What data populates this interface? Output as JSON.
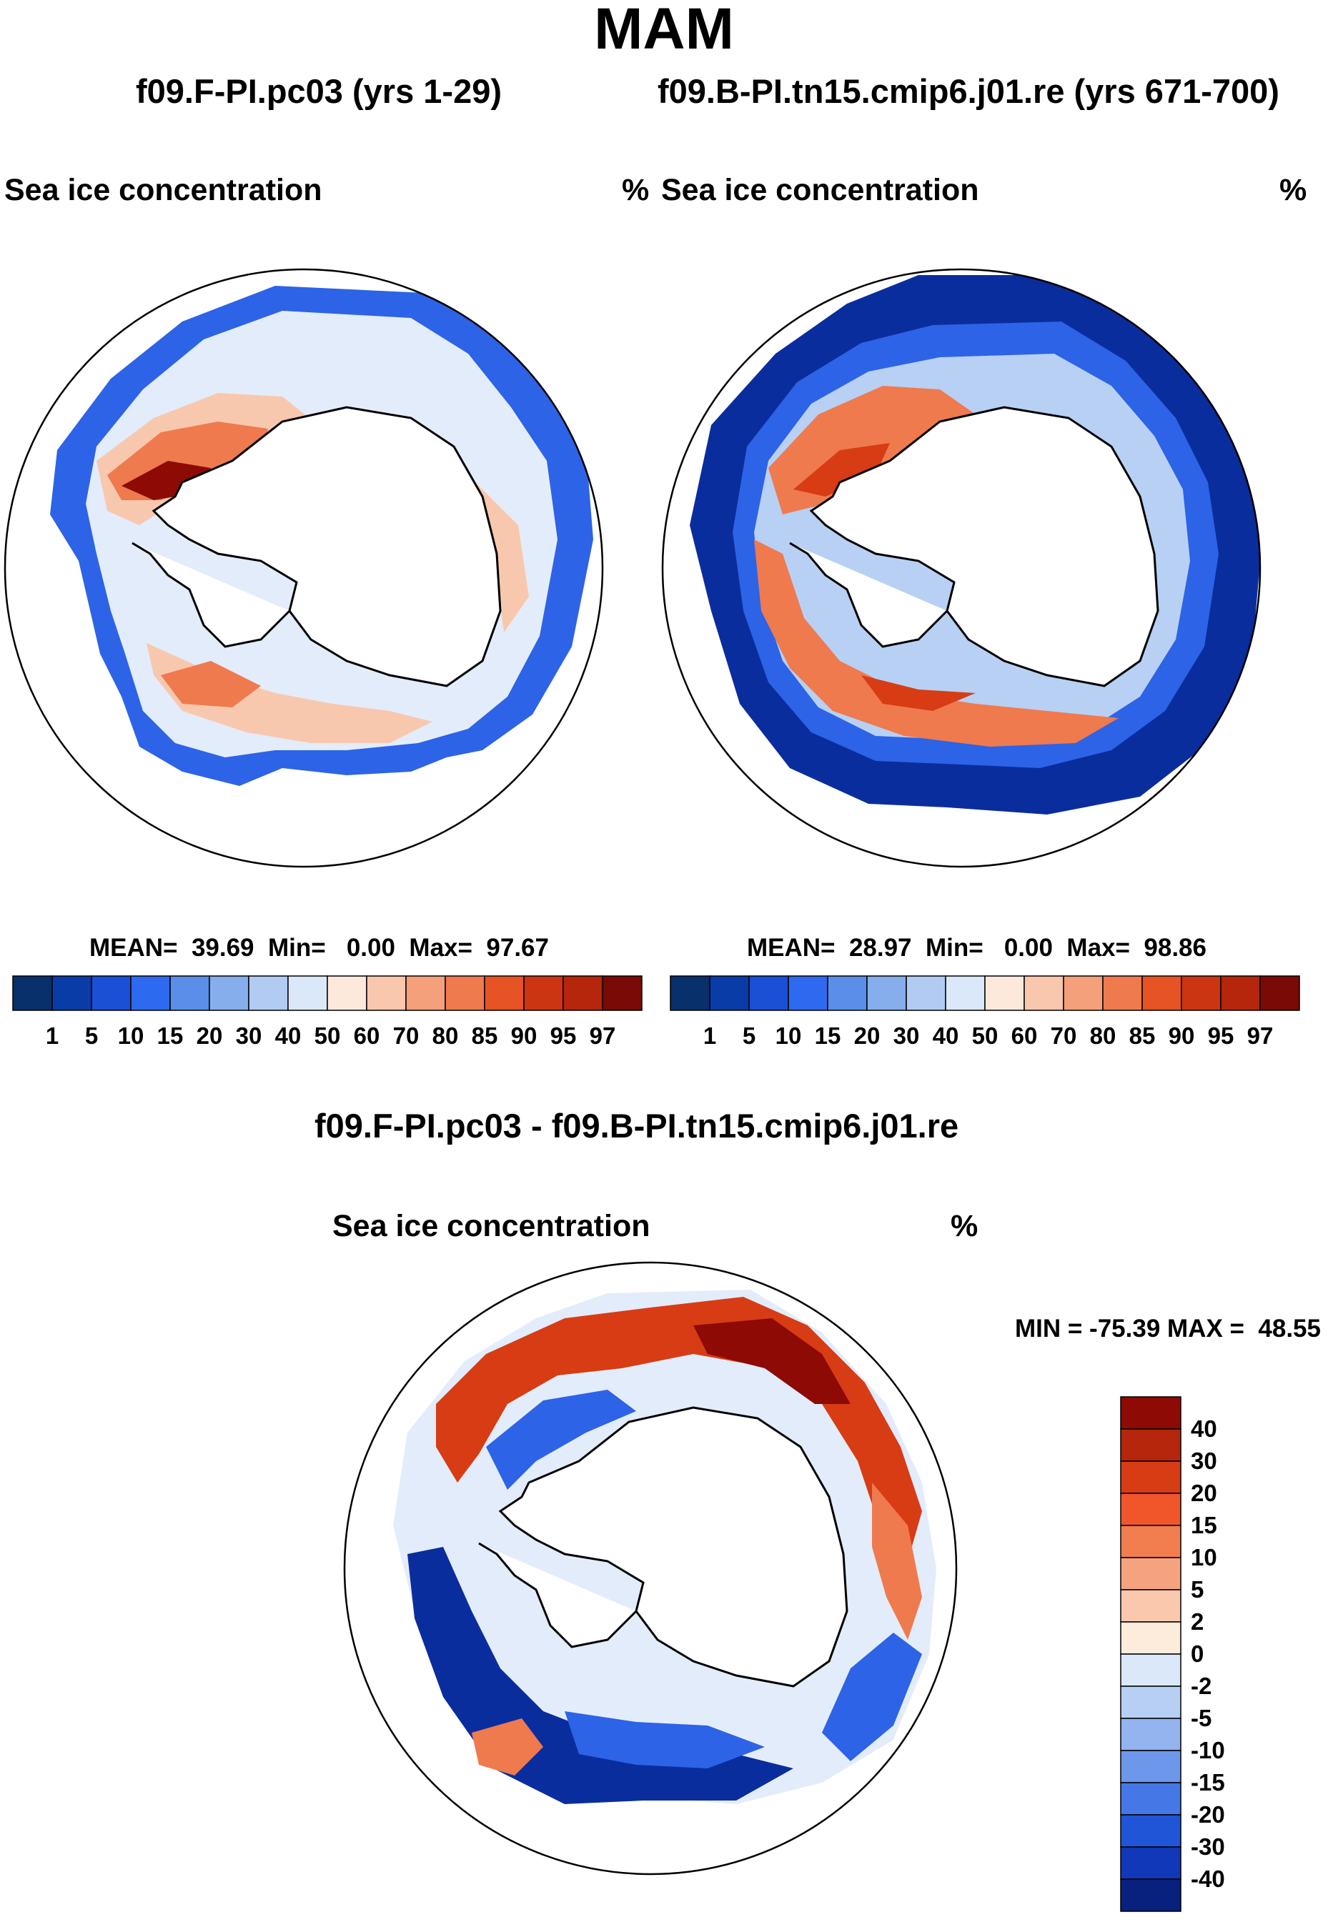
{
  "figure": {
    "season": "MAM",
    "left_panel": {
      "title": "f09.F-PI.pc03 (yrs 1-29)",
      "variable": "Sea ice concentration",
      "units": "%",
      "stats": "MEAN=  39.69  Min=   0.00  Max=  97.67"
    },
    "right_panel": {
      "title": "f09.B-PI.tn15.cmip6.j01.re (yrs 671-700)",
      "variable": "Sea ice concentration",
      "units": "%",
      "stats": "MEAN=  28.97  Min=   0.00  Max=  98.86"
    },
    "diff_panel": {
      "title": "f09.F-PI.pc03 - f09.B-PI.tn15.cmip6.j01.re",
      "variable": "Sea ice concentration",
      "units": "%",
      "stats": "MIN = -75.39 MAX =  48.55"
    },
    "abs_colorbar": {
      "ticks": [
        "1",
        "5",
        "10",
        "15",
        "20",
        "30",
        "40",
        "50",
        "60",
        "70",
        "80",
        "85",
        "90",
        "95",
        "97"
      ],
      "colors": [
        "#08306b",
        "#0a3ca8",
        "#1a4fd6",
        "#2e6af0",
        "#5a8ee8",
        "#86aeec",
        "#b2cbf2",
        "#dbe8fa",
        "#fde9dc",
        "#f8c7ad",
        "#f3a07b",
        "#ef7a4e",
        "#e65325",
        "#cc3512",
        "#b5260c",
        "#7a0a05"
      ]
    },
    "diff_colorbar": {
      "ticks": [
        "40",
        "30",
        "20",
        "15",
        "10",
        "5",
        "2",
        "0",
        "-2",
        "-5",
        "-10",
        "-15",
        "-20",
        "-30",
        "-40"
      ],
      "colors": [
        "#8e0a05",
        "#b5260c",
        "#d73c15",
        "#f0562a",
        "#f27d4f",
        "#f5a37e",
        "#f9c8ad",
        "#fdebdc",
        "#dbe8fa",
        "#b8cff4",
        "#93b4ee",
        "#6d97ea",
        "#4578e6",
        "#2055d8",
        "#1038b8",
        "#08207e"
      ]
    },
    "map_colors": {
      "deep_blue": "#0a2d9e",
      "blue": "#2d63e6",
      "light_blue": "#b8d0f4",
      "pale": "#e3ecfa",
      "peach": "#f8c8ae",
      "orange": "#ef7a4e",
      "red": "#d73c15",
      "dark_red": "#8e0a05"
    }
  }
}
